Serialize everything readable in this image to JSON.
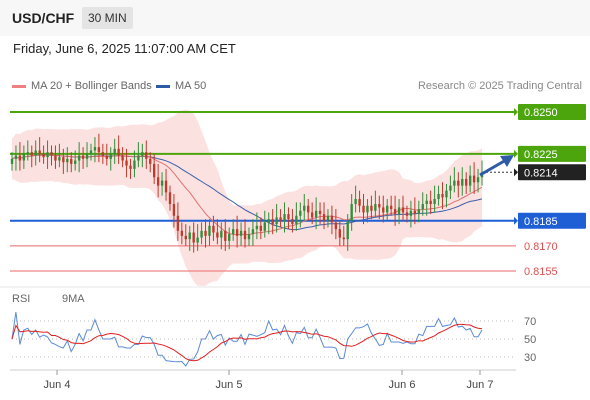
{
  "header": {
    "pair": "USD/CHF",
    "timeframe": "30 MIN"
  },
  "datetime": "Friday, June 6, 2025 11:07:00 AM CET",
  "legend": {
    "ma20": {
      "label": "MA 20 + Bollinger Bands",
      "color": "#f08080"
    },
    "ma50": {
      "label": "MA 50",
      "color": "#2e5aa8"
    }
  },
  "credit": "Research © 2025 Trading Central",
  "price_levels": [
    {
      "label": "0.8250",
      "value": 0.825,
      "kind": "resistance",
      "color": "#4ca50d"
    },
    {
      "label": "0.8225",
      "value": 0.8225,
      "kind": "resistance",
      "color": "#4ca50d"
    },
    {
      "label": "0.8214",
      "value": 0.8214,
      "kind": "last",
      "color": "#222222"
    },
    {
      "label": "0.8185",
      "value": 0.8185,
      "kind": "pivot",
      "color": "#1f5fd6"
    },
    {
      "label": "0.8170",
      "value": 0.817,
      "kind": "support",
      "color": "#e05050"
    },
    {
      "label": "0.8155",
      "value": 0.8155,
      "kind": "support",
      "color": "#e05050"
    }
  ],
  "x_axis": {
    "ticks": [
      "Jun 4",
      "Jun 5",
      "Jun 6",
      "Jun 7"
    ]
  },
  "rsi_legend": {
    "rsi": {
      "label": "RSI",
      "color": "#5b8bd6"
    },
    "ma9": {
      "label": "9MA",
      "color": "#e02020"
    }
  },
  "rsi_axis": {
    "ticks": [
      "70",
      "50",
      "30"
    ]
  },
  "chart_data": {
    "type": "candlestick",
    "instrument": "USD/CHF",
    "interval": "30 MIN",
    "price_range": [
      0.815,
      0.826
    ],
    "close_series": [
      0.8222,
      0.8224,
      0.8221,
      0.8225,
      0.8226,
      0.8224,
      0.8227,
      0.8225,
      0.8223,
      0.8226,
      0.8224,
      0.8221,
      0.8223,
      0.822,
      0.8222,
      0.8219,
      0.8221,
      0.8224,
      0.8222,
      0.8225,
      0.8227,
      0.8229,
      0.8226,
      0.8224,
      0.8222,
      0.8225,
      0.8228,
      0.8224,
      0.8221,
      0.8218,
      0.8216,
      0.8221,
      0.8224,
      0.8226,
      0.8222,
      0.8219,
      0.8211,
      0.8206,
      0.8209,
      0.8202,
      0.8195,
      0.8188,
      0.8179,
      0.8176,
      0.8174,
      0.8178,
      0.8172,
      0.8175,
      0.8179,
      0.8176,
      0.8182,
      0.8178,
      0.8175,
      0.8179,
      0.8173,
      0.8177,
      0.818,
      0.8176,
      0.8179,
      0.8174,
      0.8177,
      0.818,
      0.8182,
      0.8179,
      0.8184,
      0.8186,
      0.8183,
      0.8187,
      0.8185,
      0.8189,
      0.8186,
      0.8183,
      0.8188,
      0.8191,
      0.8194,
      0.819,
      0.8187,
      0.8191,
      0.8189,
      0.8185,
      0.8188,
      0.8184,
      0.818,
      0.8175,
      0.8174,
      0.8185,
      0.8195,
      0.8198,
      0.8194,
      0.819,
      0.8194,
      0.8191,
      0.8195,
      0.8193,
      0.819,
      0.8194,
      0.8192,
      0.8189,
      0.8193,
      0.819,
      0.8188,
      0.8191,
      0.8189,
      0.8192,
      0.8195,
      0.8197,
      0.8195,
      0.8198,
      0.8201,
      0.8199,
      0.8203,
      0.8206,
      0.8209,
      0.8206,
      0.821,
      0.8206,
      0.8212,
      0.8208,
      0.8211,
      0.8214
    ],
    "moving_average_50_approx": [
      0.8183,
      0.8217
    ],
    "rsi_levels": [
      70,
      50,
      30
    ],
    "x_labels": [
      "Jun 4",
      "Jun 5",
      "Jun 6",
      "Jun 7"
    ]
  }
}
